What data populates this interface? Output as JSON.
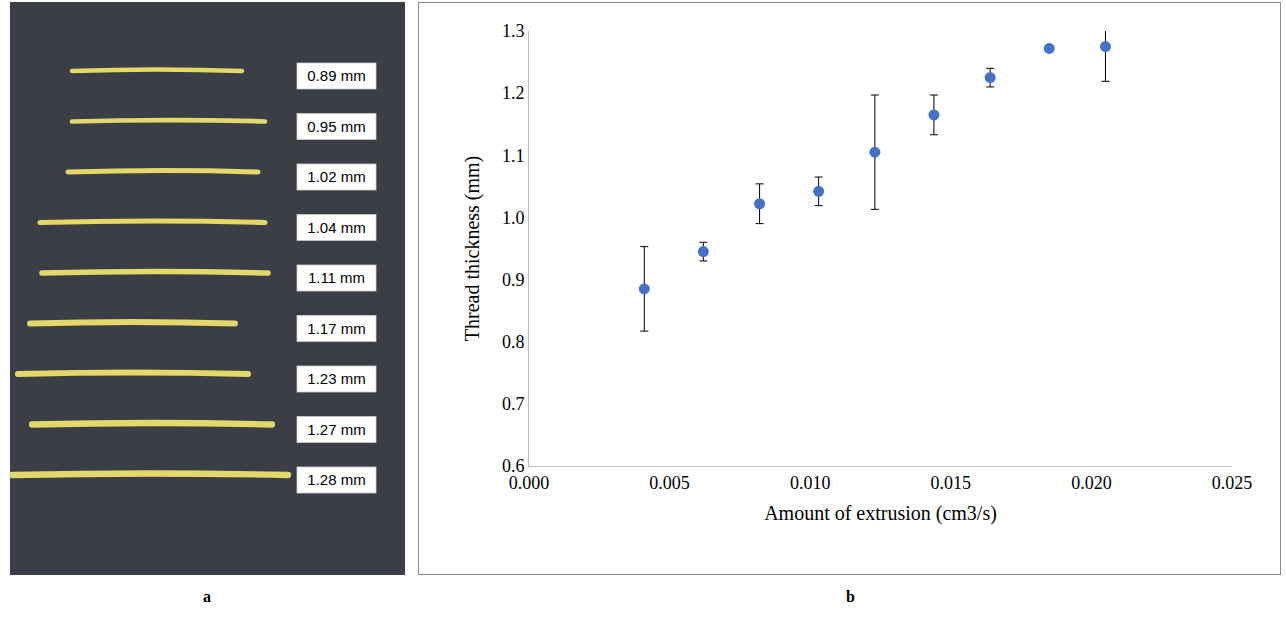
{
  "chart_data": [
    {
      "type": "threads",
      "title": "a",
      "values": [
        0.89,
        0.95,
        1.02,
        1.04,
        1.11,
        1.17,
        1.23,
        1.27,
        1.28
      ],
      "value_labels": [
        "0.89 mm",
        "0.95 mm",
        "1.02 mm",
        "1.04 mm",
        "1.11 mm",
        "1.17 mm",
        "1.23 mm",
        "1.27 mm",
        "1.28 mm"
      ],
      "color": "#e3d96a"
    },
    {
      "type": "scatter",
      "title": "b",
      "x": [
        0.0041,
        0.0062,
        0.0082,
        0.0103,
        0.0123,
        0.0144,
        0.0164,
        0.0185,
        0.0205
      ],
      "values": [
        0.885,
        0.945,
        1.022,
        1.042,
        1.105,
        1.165,
        1.225,
        1.272,
        1.275
      ],
      "errors": [
        0.068,
        0.015,
        0.032,
        0.023,
        0.092,
        0.032,
        0.015,
        0.004,
        0.056
      ],
      "color": "#4472c4",
      "marker": "circle",
      "xlabel": "Amount of extrusion (cm3/s)",
      "ylabel": "Thread thickness (mm)",
      "xlim": [
        0,
        0.025
      ],
      "xticks": [
        {
          "value": 0,
          "label": "0.000"
        },
        0.005,
        {
          "value": 0.01,
          "label": "0.010"
        },
        0.015,
        {
          "value": 0.02,
          "label": "0.020"
        },
        0.025
      ],
      "ylim": [
        0.6,
        1.3
      ],
      "yticks": [
        0.6,
        0.7,
        0.8,
        0.9,
        {
          "value": 1,
          "label": "1.0"
        },
        1.1,
        1.2,
        1.3
      ],
      "grid": false
    }
  ]
}
